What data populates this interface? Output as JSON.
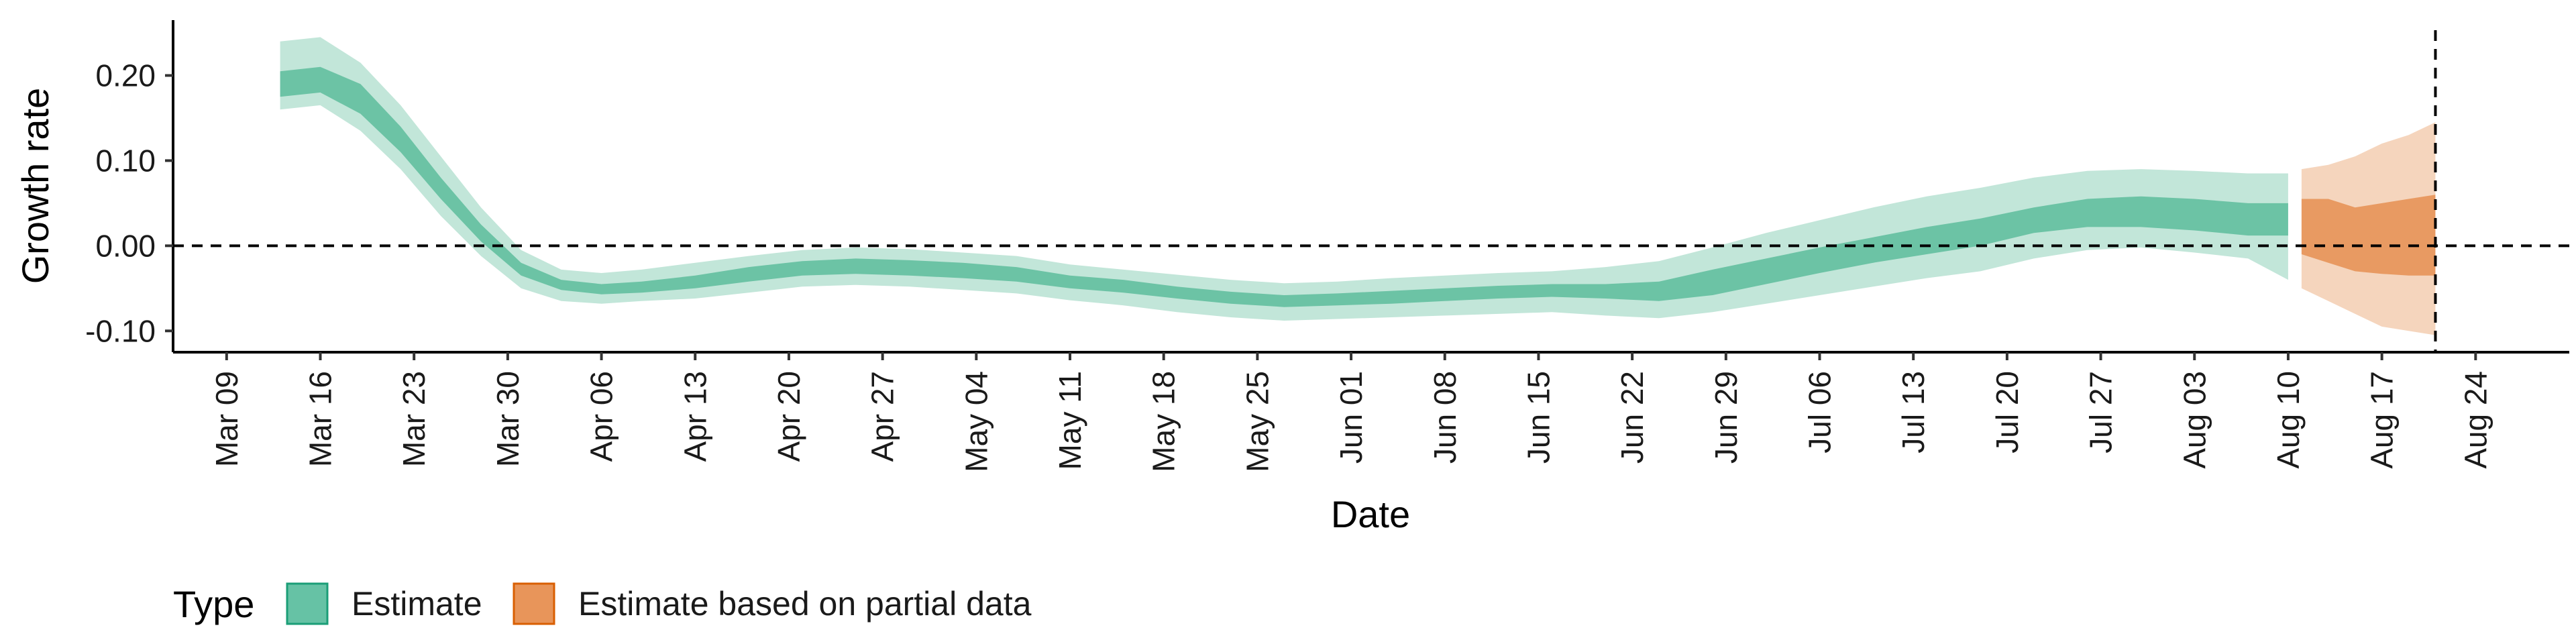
{
  "chart_data": {
    "type": "area",
    "xlabel": "Date",
    "ylabel": "Growth rate",
    "ylim": [
      -0.125,
      0.265
    ],
    "xlim": [
      "2020-03-05",
      "2020-08-31"
    ],
    "y_ticks": [
      {
        "value": -0.1,
        "label": "-0.10"
      },
      {
        "value": 0.0,
        "label": "0.00"
      },
      {
        "value": 0.1,
        "label": "0.10"
      },
      {
        "value": 0.2,
        "label": "0.20"
      }
    ],
    "x_ticks": [
      {
        "date": "2020-03-09",
        "label": "Mar 09"
      },
      {
        "date": "2020-03-16",
        "label": "Mar 16"
      },
      {
        "date": "2020-03-23",
        "label": "Mar 23"
      },
      {
        "date": "2020-03-30",
        "label": "Mar 30"
      },
      {
        "date": "2020-04-06",
        "label": "Apr 06"
      },
      {
        "date": "2020-04-13",
        "label": "Apr 13"
      },
      {
        "date": "2020-04-20",
        "label": "Apr 20"
      },
      {
        "date": "2020-04-27",
        "label": "Apr 27"
      },
      {
        "date": "2020-05-04",
        "label": "May 04"
      },
      {
        "date": "2020-05-11",
        "label": "May 11"
      },
      {
        "date": "2020-05-18",
        "label": "May 18"
      },
      {
        "date": "2020-05-25",
        "label": "May 25"
      },
      {
        "date": "2020-06-01",
        "label": "Jun 01"
      },
      {
        "date": "2020-06-08",
        "label": "Jun 08"
      },
      {
        "date": "2020-06-15",
        "label": "Jun 15"
      },
      {
        "date": "2020-06-22",
        "label": "Jun 22"
      },
      {
        "date": "2020-06-29",
        "label": "Jun 29"
      },
      {
        "date": "2020-07-06",
        "label": "Jul 06"
      },
      {
        "date": "2020-07-13",
        "label": "Jul 13"
      },
      {
        "date": "2020-07-20",
        "label": "Jul 20"
      },
      {
        "date": "2020-07-27",
        "label": "Jul 27"
      },
      {
        "date": "2020-08-03",
        "label": "Aug 03"
      },
      {
        "date": "2020-08-10",
        "label": "Aug 10"
      },
      {
        "date": "2020-08-17",
        "label": "Aug 17"
      },
      {
        "date": "2020-08-24",
        "label": "Aug 24"
      }
    ],
    "reference_lines": {
      "hline_y": 0,
      "vline_date": "2020-08-21"
    },
    "legend": {
      "title": "Type",
      "position": "bottom-left",
      "entries": [
        {
          "label": "Estimate",
          "fill": "#66c2a5",
          "border": "#1b9e77"
        },
        {
          "label": "Estimate based on partial data",
          "fill": "#e8955a",
          "border": "#d95f02"
        }
      ]
    },
    "colors": {
      "estimate_inner": "#6cc3a5",
      "estimate_outer": "#c2e6d9",
      "partial_inner": "#e89a62",
      "partial_outer": "#f5d5bd"
    },
    "series": [
      {
        "name": "Estimate",
        "x": [
          "2020-03-13",
          "2020-03-16",
          "2020-03-19",
          "2020-03-22",
          "2020-03-25",
          "2020-03-28",
          "2020-03-31",
          "2020-04-03",
          "2020-04-06",
          "2020-04-09",
          "2020-04-13",
          "2020-04-17",
          "2020-04-21",
          "2020-04-25",
          "2020-04-29",
          "2020-05-03",
          "2020-05-07",
          "2020-05-11",
          "2020-05-15",
          "2020-05-19",
          "2020-05-23",
          "2020-05-27",
          "2020-05-31",
          "2020-06-04",
          "2020-06-08",
          "2020-06-12",
          "2020-06-16",
          "2020-06-20",
          "2020-06-24",
          "2020-06-28",
          "2020-07-02",
          "2020-07-06",
          "2020-07-10",
          "2020-07-14",
          "2020-07-18",
          "2020-07-22",
          "2020-07-26",
          "2020-07-30",
          "2020-08-03",
          "2020-08-07",
          "2020-08-10"
        ],
        "inner_low": [
          0.175,
          0.18,
          0.155,
          0.11,
          0.055,
          0.005,
          -0.035,
          -0.052,
          -0.057,
          -0.055,
          -0.05,
          -0.042,
          -0.035,
          -0.033,
          -0.035,
          -0.038,
          -0.042,
          -0.05,
          -0.055,
          -0.062,
          -0.068,
          -0.072,
          -0.07,
          -0.068,
          -0.065,
          -0.062,
          -0.06,
          -0.062,
          -0.065,
          -0.058,
          -0.045,
          -0.032,
          -0.02,
          -0.01,
          0.0,
          0.015,
          0.022,
          0.022,
          0.018,
          0.012,
          0.012
        ],
        "inner_high": [
          0.205,
          0.21,
          0.19,
          0.14,
          0.08,
          0.025,
          -0.02,
          -0.04,
          -0.045,
          -0.042,
          -0.035,
          -0.025,
          -0.018,
          -0.015,
          -0.017,
          -0.02,
          -0.025,
          -0.035,
          -0.04,
          -0.048,
          -0.054,
          -0.058,
          -0.056,
          -0.053,
          -0.05,
          -0.047,
          -0.045,
          -0.045,
          -0.042,
          -0.028,
          -0.015,
          -0.002,
          0.01,
          0.022,
          0.032,
          0.045,
          0.055,
          0.058,
          0.055,
          0.05,
          0.05
        ],
        "outer_low": [
          0.16,
          0.165,
          0.135,
          0.09,
          0.035,
          -0.012,
          -0.05,
          -0.065,
          -0.068,
          -0.065,
          -0.062,
          -0.055,
          -0.048,
          -0.046,
          -0.048,
          -0.052,
          -0.056,
          -0.064,
          -0.07,
          -0.078,
          -0.084,
          -0.088,
          -0.086,
          -0.084,
          -0.082,
          -0.08,
          -0.078,
          -0.082,
          -0.085,
          -0.078,
          -0.068,
          -0.058,
          -0.048,
          -0.038,
          -0.03,
          -0.015,
          -0.005,
          -0.002,
          -0.008,
          -0.015,
          -0.04
        ],
        "outer_high": [
          0.24,
          0.245,
          0.215,
          0.165,
          0.105,
          0.045,
          -0.005,
          -0.028,
          -0.032,
          -0.028,
          -0.02,
          -0.012,
          -0.005,
          -0.002,
          -0.004,
          -0.008,
          -0.012,
          -0.022,
          -0.028,
          -0.034,
          -0.04,
          -0.044,
          -0.042,
          -0.038,
          -0.035,
          -0.032,
          -0.03,
          -0.025,
          -0.018,
          -0.002,
          0.015,
          0.03,
          0.045,
          0.058,
          0.068,
          0.08,
          0.088,
          0.09,
          0.088,
          0.085,
          0.085
        ]
      },
      {
        "name": "Estimate based on partial data",
        "x": [
          "2020-08-11",
          "2020-08-13",
          "2020-08-15",
          "2020-08-17",
          "2020-08-19",
          "2020-08-21"
        ],
        "inner_low": [
          -0.01,
          -0.02,
          -0.03,
          -0.033,
          -0.035,
          -0.035
        ],
        "inner_high": [
          0.055,
          0.055,
          0.045,
          0.05,
          0.055,
          0.06
        ],
        "outer_low": [
          -0.05,
          -0.065,
          -0.08,
          -0.095,
          -0.1,
          -0.105
        ],
        "outer_high": [
          0.09,
          0.095,
          0.105,
          0.12,
          0.13,
          0.145
        ]
      }
    ]
  }
}
